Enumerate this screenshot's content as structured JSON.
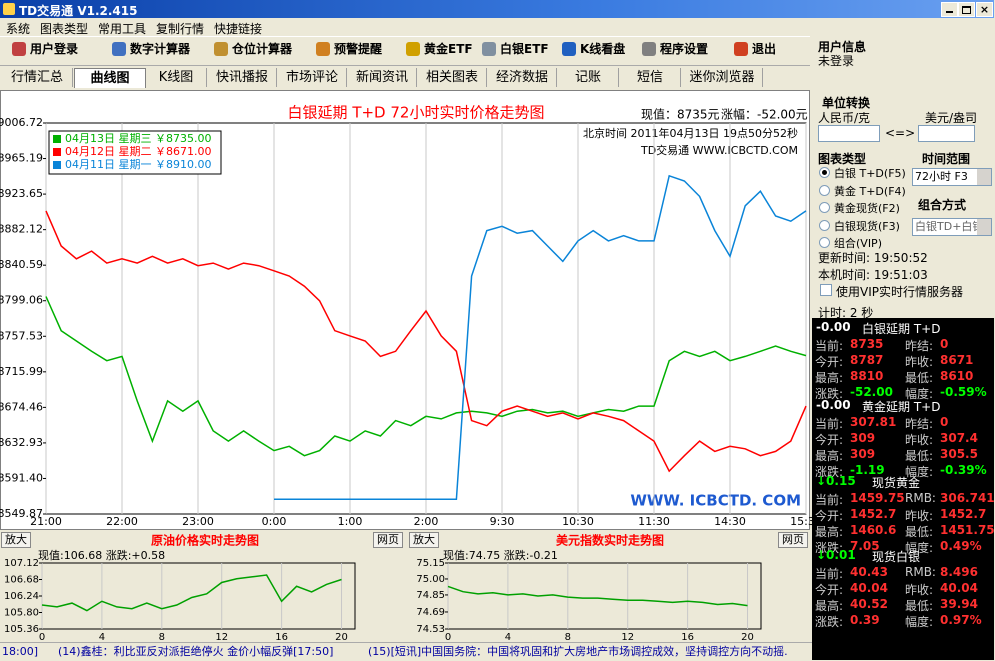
{
  "window": {
    "title": "TD交易通 V1.2.415"
  },
  "menu": [
    "系统",
    "图表类型",
    "常用工具",
    "复制行情",
    "快捷链接"
  ],
  "toolbar": [
    "用户登录",
    "数字计算器",
    "仓位计算器",
    "预警提醒",
    "黄金ETF",
    "白银ETF",
    "K线看盘",
    "程序设置",
    "退出"
  ],
  "tabs": [
    "行情汇总",
    "曲线图",
    "K线图",
    "快讯播报",
    "市场评论",
    "新闻资讯",
    "相关图表",
    "经济数据",
    "记账",
    "短信",
    "迷你浏览器"
  ],
  "user_info": {
    "title": "用户信息",
    "status": "未登录"
  },
  "unit_conversion": {
    "title": "单位转换",
    "left": "人民币/克",
    "right": "美元/盎司",
    "swap": "<=>"
  },
  "chart_type": {
    "title": "图表类型",
    "options": [
      "白银 T+D(F5)",
      "黄金 T+D(F4)",
      "黄金现货(F2)",
      "白银现货(F3)",
      "组合(VIP)"
    ]
  },
  "time_range": {
    "title": "时间范围",
    "value": "72小时 F3"
  },
  "combine": {
    "title": "组合方式",
    "value": "白银TD+白银"
  },
  "update_time": "更新时间: 19:50:52",
  "local_time": "本机时间: 19:51:03",
  "vip_checkbox": "使用VIP实时行情服务器",
  "timer": "计时: 2 秒",
  "quotes": [
    {
      "change": "-0.00",
      "name": "白银延期 T+D",
      "rows": [
        [
          "当前:",
          "8735",
          "昨结:",
          "0"
        ],
        [
          "今开:",
          "8787",
          "昨收:",
          "8671"
        ],
        [
          "最高:",
          "8810",
          "最低:",
          "8610"
        ],
        [
          "涨跌:",
          "-52.00",
          "幅度:",
          "-0.59%"
        ]
      ]
    },
    {
      "change": "-0.00",
      "name": "黄金延期 T+D",
      "rows": [
        [
          "当前:",
          "307.81",
          "昨结:",
          "0"
        ],
        [
          "今开:",
          "309",
          "昨收:",
          "307.4"
        ],
        [
          "最高:",
          "309",
          "最低:",
          "305.5"
        ],
        [
          "涨跌:",
          "-1.19",
          "幅度:",
          "-0.39%"
        ]
      ]
    },
    {
      "change": "↓0.15",
      "name": "现货黄金",
      "rows": [
        [
          "当前:",
          "1459.75",
          "RMB:",
          "306.741"
        ],
        [
          "今开:",
          "1452.7",
          "昨收:",
          "1452.7"
        ],
        [
          "最高:",
          "1460.6",
          "最低:",
          "1451.75"
        ],
        [
          "涨跌:",
          "7.05",
          "幅度:",
          "0.49%"
        ]
      ]
    },
    {
      "change": "↓0.01",
      "name": "现货白银",
      "rows": [
        [
          "当前:",
          "40.43",
          "RMB:",
          "8.496"
        ],
        [
          "今开:",
          "40.04",
          "昨收:",
          "40.04"
        ],
        [
          "最高:",
          "40.52",
          "最低:",
          "39.94"
        ],
        [
          "涨跌:",
          "0.39",
          "幅度:",
          "0.97%"
        ]
      ]
    }
  ],
  "buttons": {
    "zoom": "放大",
    "web": "网页"
  },
  "status_bar": [
    "18:00]",
    "(14)鑫桂：利比亚反对派拒绝停火 金价小幅反弹[17:50]",
    "(15)[短讯]中国国务院：中国将巩固和扩大房地产市场调控成效，坚持调控方向不动摇."
  ],
  "chart_data": [
    {
      "type": "line",
      "title": "白银延期 T+D 72小时实时价格走势图",
      "current": "现值：8735元",
      "change": "涨幅：-52.00元",
      "time": "北京时间 2011年04月13日 19点50分52秒",
      "source": "TD交易通 WWW.ICBCTD.COM",
      "watermark": "WWW. ICBCTD. COM",
      "x": [
        0,
        0.2,
        0.4,
        0.6,
        0.8,
        1,
        1.2,
        1.4,
        1.6,
        1.8,
        2,
        2.2,
        2.4,
        2.6,
        2.8,
        3,
        3.2,
        3.4,
        3.6,
        3.8,
        4,
        4.2,
        4.4,
        4.6,
        4.8,
        5,
        5.2,
        5.4,
        5.6,
        5.8,
        6,
        6.2,
        6.4,
        6.6,
        6.8,
        7,
        7.2,
        7.4,
        7.6,
        7.8,
        8,
        8.2,
        8.4,
        8.6,
        8.8,
        9,
        9.2,
        9.4,
        9.6,
        9.8,
        10
      ],
      "series": [
        {
          "name": "04月13日 星期三 ￥8735.00",
          "color": "#00b000",
          "values": [
            8804,
            8764,
            8752,
            8740,
            8729,
            8734,
            8682,
            8635,
            8682,
            8670,
            8682,
            8647,
            8635,
            8647,
            8635,
            8624,
            8629,
            8618,
            8624,
            8641,
            8635,
            8647,
            8641,
            8659,
            8653,
            8664,
            8661,
            8668,
            8670,
            8668,
            8664,
            8670,
            8672,
            8668,
            8670,
            8664,
            8668,
            8672,
            8670,
            8676,
            8676,
            8729,
            8740,
            8734,
            8740,
            8729,
            8734,
            8740,
            8746,
            8740,
            8735
          ]
        },
        {
          "name": "04月12日 星期二 ￥8671.00",
          "color": "#ff0000",
          "values": [
            8904,
            8863,
            8848,
            8857,
            8843,
            8848,
            8843,
            8851,
            8843,
            8848,
            8840,
            8843,
            8836,
            8843,
            8840,
            8834,
            8828,
            8816,
            8799,
            8764,
            8758,
            8752,
            8734,
            8740,
            8764,
            8787,
            8758,
            8740,
            8659,
            8653,
            8670,
            8676,
            8670,
            8664,
            8668,
            8661,
            8668,
            8664,
            8659,
            8647,
            8635,
            8600,
            8618,
            8635,
            8623,
            8629,
            8626,
            8618,
            8623,
            8635,
            8676
          ]
        },
        {
          "name": "04月11日 星期一 ￥8910.00",
          "color": "#0a84d8",
          "values": [
            null,
            null,
            null,
            null,
            null,
            null,
            null,
            null,
            null,
            null,
            null,
            null,
            null,
            null,
            null,
            8567,
            8567,
            8567,
            8567,
            8567,
            8567,
            8567,
            8567,
            8567,
            8567,
            8567,
            8567,
            8567,
            8828,
            8881,
            8886,
            8878,
            8881,
            8863,
            8845,
            8869,
            8881,
            8869,
            8875,
            8869,
            8869,
            8945,
            8939,
            8921,
            8881,
            8851,
            8910,
            8927,
            8898,
            8892,
            8904
          ]
        }
      ],
      "xlim": [
        0,
        10
      ],
      "xticks": [
        {
          "value": 0,
          "label": "21:00"
        },
        {
          "value": 1,
          "label": "22:00"
        },
        {
          "value": 2,
          "label": "23:00"
        },
        {
          "value": 3,
          "label": "0:00"
        },
        {
          "value": 4,
          "label": "1:00"
        },
        {
          "value": 5,
          "label": "2:00"
        },
        {
          "value": 6,
          "label": "9:30"
        },
        {
          "value": 7,
          "label": "10:30"
        },
        {
          "value": 8,
          "label": "11:30"
        },
        {
          "value": 9,
          "label": "14:30"
        },
        {
          "value": 10,
          "label": "15:30"
        }
      ],
      "ylim": [
        8549.87,
        9006.72
      ],
      "yticks": [
        9006.72,
        8965.19,
        8923.65,
        8882.12,
        8840.59,
        8799.06,
        8757.53,
        8715.99,
        8674.46,
        8632.93,
        {
          "value": 8591.4,
          "label": "8591.40"
        },
        8549.87
      ],
      "grid": "x",
      "legend": "upper left"
    },
    {
      "type": "line",
      "title": "原油价格实时走势图",
      "subtitle": "现值:106.68 涨跌:+0.58",
      "x": [
        0,
        1,
        2,
        3,
        4,
        5,
        6,
        7,
        8,
        9,
        10,
        11,
        12,
        13,
        14,
        15,
        16,
        17,
        18,
        19,
        20
      ],
      "series": [
        {
          "color": "#00a000",
          "values": [
            106,
            105.95,
            106.05,
            105.85,
            106.1,
            105.95,
            105.9,
            106.05,
            105.9,
            106,
            106.2,
            106.3,
            106.6,
            106.7,
            106.75,
            106.8,
            106.1,
            106.5,
            106.35,
            106.55,
            106.68
          ]
        }
      ],
      "xlim": [
        0,
        20.9
      ],
      "xticks": [
        0,
        4,
        8,
        12,
        16,
        20
      ],
      "ylim": [
        105.36,
        107.12
      ],
      "yticks": [
        107.12,
        106.68,
        106.24,
        {
          "value": 105.8,
          "label": "105.80"
        },
        105.36
      ],
      "grid": "x"
    },
    {
      "type": "line",
      "title": "美元指数实时走势图",
      "subtitle": "现值:74.75 涨跌:-0.21",
      "x": [
        0,
        1,
        2,
        3,
        4,
        5,
        6,
        7,
        8,
        9,
        10,
        11,
        12,
        13,
        14,
        15,
        16,
        17,
        18,
        19,
        20
      ],
      "series": [
        {
          "color": "#00a000",
          "values": [
            74.93,
            74.88,
            74.86,
            74.87,
            74.85,
            74.86,
            74.84,
            74.85,
            74.83,
            74.82,
            74.82,
            74.81,
            74.8,
            74.8,
            74.79,
            74.78,
            74.79,
            74.78,
            74.76,
            74.77,
            74.75
          ]
        }
      ],
      "xlim": [
        0,
        20.9
      ],
      "xticks": [
        0,
        4,
        8,
        12,
        16,
        20
      ],
      "ylim": [
        74.53,
        75.15
      ],
      "yticks": [
        75.15,
        {
          "value": 75,
          "label": "75.00"
        },
        74.85,
        74.69,
        74.53
      ],
      "grid": "x"
    }
  ]
}
